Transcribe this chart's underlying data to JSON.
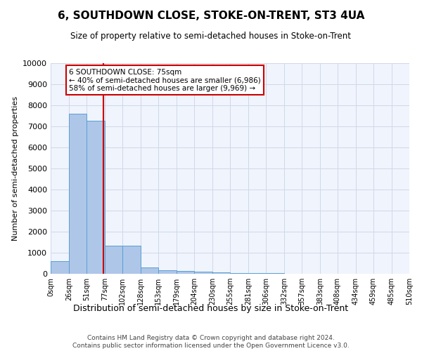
{
  "title": "6, SOUTHDOWN CLOSE, STOKE-ON-TRENT, ST3 4UA",
  "subtitle": "Size of property relative to semi-detached houses in Stoke-on-Trent",
  "xlabel": "Distribution of semi-detached houses by size in Stoke-on-Trent",
  "ylabel": "Number of semi-detached properties",
  "bin_edges": [
    0,
    26,
    51,
    77,
    102,
    128,
    153,
    179,
    204,
    230,
    255,
    281,
    306,
    332,
    357,
    383,
    408,
    434,
    459,
    485,
    510
  ],
  "bar_heights": [
    600,
    7600,
    7250,
    1350,
    1350,
    300,
    180,
    150,
    100,
    80,
    50,
    30,
    20,
    15,
    10,
    8,
    5,
    4,
    3,
    2
  ],
  "bar_color": "#aec6e8",
  "bar_edge_color": "#5a9fd4",
  "property_sqm": 75,
  "property_label": "6 SOUTHDOWN CLOSE: 75sqm",
  "pct_smaller": 40,
  "pct_larger": 58,
  "n_smaller": 6986,
  "n_larger": 9969,
  "vline_color": "#cc0000",
  "ylim": [
    0,
    10000
  ],
  "yticks": [
    0,
    1000,
    2000,
    3000,
    4000,
    5000,
    6000,
    7000,
    8000,
    9000,
    10000
  ],
  "annotation_box_edge": "#cc0000",
  "grid_color": "#d0d8e8",
  "bg_color": "#f0f4fc",
  "footer": "Contains HM Land Registry data © Crown copyright and database right 2024.\nContains public sector information licensed under the Open Government Licence v3.0."
}
